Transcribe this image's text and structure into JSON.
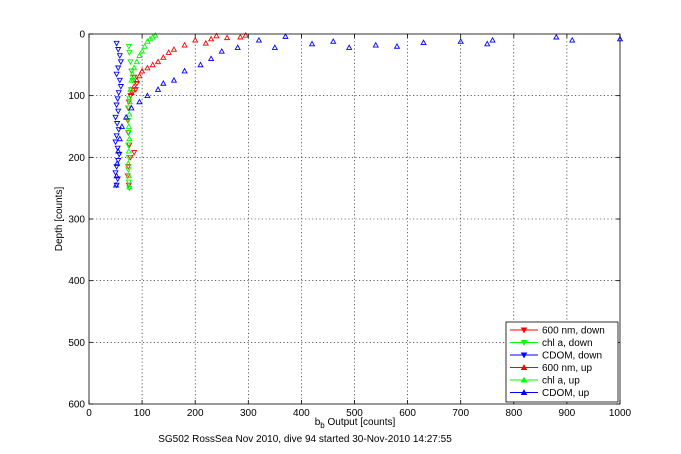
{
  "chart_data": {
    "type": "scatter",
    "title": "",
    "footer": "SG502 RossSea Nov 2010, dive 94 started 30-Nov-2010 14:27:55",
    "xlabel_main": "b",
    "xlabel_sub": "b",
    "xlabel_rest": " Output [counts]",
    "ylabel": "Depth [counts]",
    "xlim": [
      0,
      1000
    ],
    "ylim": [
      0,
      600
    ],
    "y_reversed": true,
    "grid": true,
    "legend_position": "bottom-right",
    "x_ticks": [
      "0",
      "100",
      "200",
      "300",
      "400",
      "500",
      "600",
      "700",
      "800",
      "900",
      "1000"
    ],
    "y_ticks": [
      "0",
      "100",
      "200",
      "300",
      "400",
      "500",
      "600"
    ],
    "colors": {
      "red": "#ff0000",
      "green": "#00ff00",
      "blue": "#0000ff"
    },
    "series": [
      {
        "name": "600 nm, down",
        "color": "#ff0000",
        "marker": "triangle-down",
        "points": [
          [
            80,
            60
          ],
          [
            85,
            70
          ],
          [
            90,
            80
          ],
          [
            88,
            90
          ],
          [
            82,
            95
          ],
          [
            78,
            100
          ],
          [
            75,
            110
          ],
          [
            74,
            120
          ],
          [
            73,
            140
          ],
          [
            74,
            160
          ],
          [
            76,
            180
          ],
          [
            85,
            192
          ],
          [
            78,
            200
          ],
          [
            74,
            215
          ],
          [
            73,
            230
          ],
          [
            75,
            245
          ]
        ]
      },
      {
        "name": "chl a, down",
        "color": "#00ff00",
        "marker": "triangle-down",
        "points": [
          [
            75,
            20
          ],
          [
            76,
            30
          ],
          [
            78,
            45
          ],
          [
            80,
            60
          ],
          [
            82,
            75
          ],
          [
            79,
            90
          ],
          [
            76,
            105
          ],
          [
            75,
            120
          ],
          [
            74,
            140
          ],
          [
            75,
            160
          ],
          [
            74,
            180
          ],
          [
            75,
            200
          ],
          [
            74,
            220
          ],
          [
            75,
            240
          ],
          [
            76,
            250
          ]
        ]
      },
      {
        "name": "CDOM, down",
        "color": "#0000ff",
        "marker": "triangle-down",
        "points": [
          [
            52,
            15
          ],
          [
            55,
            25
          ],
          [
            58,
            35
          ],
          [
            60,
            45
          ],
          [
            55,
            55
          ],
          [
            52,
            65
          ],
          [
            58,
            75
          ],
          [
            60,
            85
          ],
          [
            56,
            95
          ],
          [
            54,
            105
          ],
          [
            52,
            115
          ],
          [
            55,
            125
          ],
          [
            50,
            135
          ],
          [
            53,
            145
          ],
          [
            56,
            155
          ],
          [
            52,
            165
          ],
          [
            50,
            175
          ],
          [
            54,
            185
          ],
          [
            57,
            195
          ],
          [
            55,
            205
          ],
          [
            52,
            215
          ],
          [
            50,
            225
          ],
          [
            54,
            235
          ],
          [
            52,
            245
          ]
        ]
      },
      {
        "name": "600 nm, up",
        "color": "#ff0000",
        "marker": "triangle-up",
        "points": [
          [
            295,
            2
          ],
          [
            240,
            3
          ],
          [
            285,
            5
          ],
          [
            230,
            8
          ],
          [
            200,
            10
          ],
          [
            260,
            6
          ],
          [
            220,
            15
          ],
          [
            180,
            18
          ],
          [
            160,
            25
          ],
          [
            150,
            30
          ],
          [
            140,
            38
          ],
          [
            130,
            45
          ],
          [
            120,
            50
          ],
          [
            110,
            55
          ],
          [
            100,
            60
          ],
          [
            95,
            68
          ],
          [
            90,
            75
          ],
          [
            85,
            85
          ],
          [
            80,
            95
          ]
        ]
      },
      {
        "name": "chl a, up",
        "color": "#00ff00",
        "marker": "triangle-up",
        "points": [
          [
            125,
            2
          ],
          [
            120,
            5
          ],
          [
            115,
            8
          ],
          [
            110,
            12
          ],
          [
            105,
            20
          ],
          [
            100,
            28
          ],
          [
            95,
            35
          ],
          [
            90,
            45
          ],
          [
            85,
            55
          ],
          [
            82,
            65
          ],
          [
            80,
            75
          ],
          [
            78,
            90
          ],
          [
            77,
            110
          ],
          [
            76,
            130
          ],
          [
            75,
            150
          ],
          [
            76,
            170
          ],
          [
            75,
            190
          ],
          [
            74,
            210
          ],
          [
            75,
            230
          ],
          [
            76,
            248
          ]
        ]
      },
      {
        "name": "CDOM, up",
        "color": "#0000ff",
        "marker": "triangle-up",
        "points": [
          [
            1000,
            8
          ],
          [
            910,
            10
          ],
          [
            880,
            5
          ],
          [
            760,
            10
          ],
          [
            750,
            16
          ],
          [
            700,
            12
          ],
          [
            630,
            14
          ],
          [
            580,
            20
          ],
          [
            540,
            18
          ],
          [
            490,
            22
          ],
          [
            460,
            12
          ],
          [
            420,
            16
          ],
          [
            370,
            4
          ],
          [
            350,
            22
          ],
          [
            320,
            10
          ],
          [
            280,
            22
          ],
          [
            250,
            28
          ],
          [
            230,
            40
          ],
          [
            210,
            50
          ],
          [
            180,
            60
          ],
          [
            160,
            75
          ],
          [
            140,
            80
          ],
          [
            130,
            90
          ],
          [
            110,
            100
          ],
          [
            95,
            110
          ],
          [
            80,
            120
          ],
          [
            70,
            135
          ],
          [
            62,
            150
          ],
          [
            58,
            170
          ],
          [
            55,
            190
          ],
          [
            53,
            210
          ],
          [
            52,
            230
          ],
          [
            51,
            245
          ]
        ]
      }
    ]
  }
}
